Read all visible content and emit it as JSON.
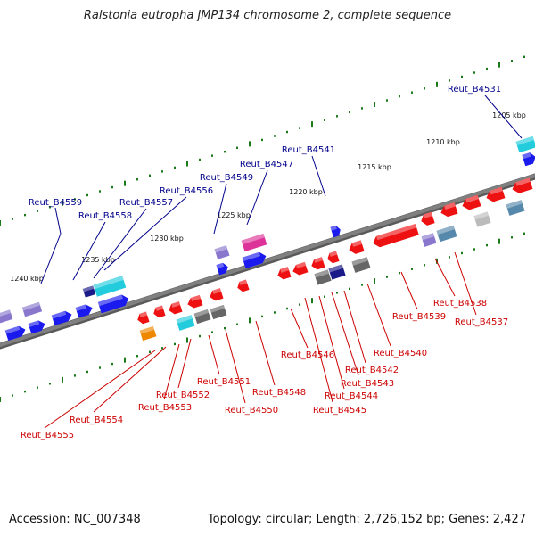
{
  "title": "Ralstonia eutropha JMP134 chromosome 2, complete sequence",
  "footer": {
    "accession": "Accession: NC_007348",
    "topology": "Topology: circular; Length: 2,726,152 bp; Genes: 2,427"
  },
  "colors": {
    "forward_label": "#00008b",
    "reverse_label": "#cc0000",
    "backbone": "#808080",
    "tick": "#1a7a1a",
    "gene_blue": "#1a1aee",
    "gene_red": "#ee1111",
    "gene_cyan": "#22ccdd",
    "gene_purple": "#8877cc",
    "gene_gray": "#666666",
    "gene_magenta": "#dd3399",
    "gene_orange": "#ee8800",
    "gene_navy": "#1a1a88",
    "gene_steel": "#5588aa",
    "gene_silver": "#bbbbbb"
  },
  "scale_ticks": [
    "1205 kbp",
    "1210 kbp",
    "1215 kbp",
    "1220 kbp",
    "1225 kbp",
    "1230 kbp",
    "1235 kbp",
    "1240 kbp"
  ],
  "forward_labels": [
    "Reut_B4531",
    "Reut_B4541",
    "Reut_B4547",
    "Reut_B4549",
    "Reut_B4556",
    "Reut_B4557",
    "Reut_B4558",
    "Reut_B4559"
  ],
  "reverse_labels": [
    "Reut_B4537",
    "Reut_B4538",
    "Reut_B4539",
    "Reut_B4540",
    "Reut_B4542",
    "Reut_B4543",
    "Reut_B4544",
    "Reut_B4545",
    "Reut_B4546",
    "Reut_B4548",
    "Reut_B4550",
    "Reut_B4551",
    "Reut_B4552",
    "Reut_B4553",
    "Reut_B4554",
    "Reut_B4555"
  ]
}
